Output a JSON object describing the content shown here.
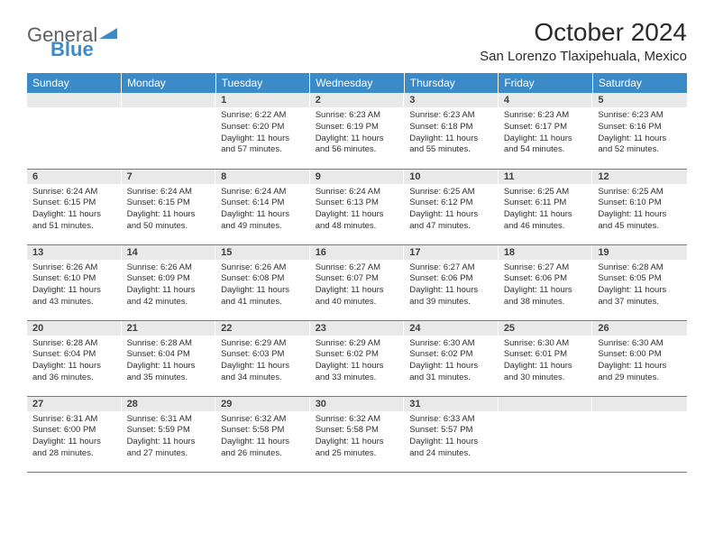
{
  "logo": {
    "text1": "General",
    "text2": "Blue"
  },
  "title": "October 2024",
  "location": "San Lorenzo Tlaxipehuala, Mexico",
  "daynames": [
    "Sunday",
    "Monday",
    "Tuesday",
    "Wednesday",
    "Thursday",
    "Friday",
    "Saturday"
  ],
  "colors": {
    "header_bg": "#3b8bc9",
    "daynum_bg": "#e9e9e9",
    "rule": "#3b8bc9"
  },
  "weeks": [
    [
      null,
      null,
      {
        "n": "1",
        "sr": "6:22 AM",
        "ss": "6:20 PM",
        "d1": "11 hours",
        "d2": "and 57 minutes."
      },
      {
        "n": "2",
        "sr": "6:23 AM",
        "ss": "6:19 PM",
        "d1": "11 hours",
        "d2": "and 56 minutes."
      },
      {
        "n": "3",
        "sr": "6:23 AM",
        "ss": "6:18 PM",
        "d1": "11 hours",
        "d2": "and 55 minutes."
      },
      {
        "n": "4",
        "sr": "6:23 AM",
        "ss": "6:17 PM",
        "d1": "11 hours",
        "d2": "and 54 minutes."
      },
      {
        "n": "5",
        "sr": "6:23 AM",
        "ss": "6:16 PM",
        "d1": "11 hours",
        "d2": "and 52 minutes."
      }
    ],
    [
      {
        "n": "6",
        "sr": "6:24 AM",
        "ss": "6:15 PM",
        "d1": "11 hours",
        "d2": "and 51 minutes."
      },
      {
        "n": "7",
        "sr": "6:24 AM",
        "ss": "6:15 PM",
        "d1": "11 hours",
        "d2": "and 50 minutes."
      },
      {
        "n": "8",
        "sr": "6:24 AM",
        "ss": "6:14 PM",
        "d1": "11 hours",
        "d2": "and 49 minutes."
      },
      {
        "n": "9",
        "sr": "6:24 AM",
        "ss": "6:13 PM",
        "d1": "11 hours",
        "d2": "and 48 minutes."
      },
      {
        "n": "10",
        "sr": "6:25 AM",
        "ss": "6:12 PM",
        "d1": "11 hours",
        "d2": "and 47 minutes."
      },
      {
        "n": "11",
        "sr": "6:25 AM",
        "ss": "6:11 PM",
        "d1": "11 hours",
        "d2": "and 46 minutes."
      },
      {
        "n": "12",
        "sr": "6:25 AM",
        "ss": "6:10 PM",
        "d1": "11 hours",
        "d2": "and 45 minutes."
      }
    ],
    [
      {
        "n": "13",
        "sr": "6:26 AM",
        "ss": "6:10 PM",
        "d1": "11 hours",
        "d2": "and 43 minutes."
      },
      {
        "n": "14",
        "sr": "6:26 AM",
        "ss": "6:09 PM",
        "d1": "11 hours",
        "d2": "and 42 minutes."
      },
      {
        "n": "15",
        "sr": "6:26 AM",
        "ss": "6:08 PM",
        "d1": "11 hours",
        "d2": "and 41 minutes."
      },
      {
        "n": "16",
        "sr": "6:27 AM",
        "ss": "6:07 PM",
        "d1": "11 hours",
        "d2": "and 40 minutes."
      },
      {
        "n": "17",
        "sr": "6:27 AM",
        "ss": "6:06 PM",
        "d1": "11 hours",
        "d2": "and 39 minutes."
      },
      {
        "n": "18",
        "sr": "6:27 AM",
        "ss": "6:06 PM",
        "d1": "11 hours",
        "d2": "and 38 minutes."
      },
      {
        "n": "19",
        "sr": "6:28 AM",
        "ss": "6:05 PM",
        "d1": "11 hours",
        "d2": "and 37 minutes."
      }
    ],
    [
      {
        "n": "20",
        "sr": "6:28 AM",
        "ss": "6:04 PM",
        "d1": "11 hours",
        "d2": "and 36 minutes."
      },
      {
        "n": "21",
        "sr": "6:28 AM",
        "ss": "6:04 PM",
        "d1": "11 hours",
        "d2": "and 35 minutes."
      },
      {
        "n": "22",
        "sr": "6:29 AM",
        "ss": "6:03 PM",
        "d1": "11 hours",
        "d2": "and 34 minutes."
      },
      {
        "n": "23",
        "sr": "6:29 AM",
        "ss": "6:02 PM",
        "d1": "11 hours",
        "d2": "and 33 minutes."
      },
      {
        "n": "24",
        "sr": "6:30 AM",
        "ss": "6:02 PM",
        "d1": "11 hours",
        "d2": "and 31 minutes."
      },
      {
        "n": "25",
        "sr": "6:30 AM",
        "ss": "6:01 PM",
        "d1": "11 hours",
        "d2": "and 30 minutes."
      },
      {
        "n": "26",
        "sr": "6:30 AM",
        "ss": "6:00 PM",
        "d1": "11 hours",
        "d2": "and 29 minutes."
      }
    ],
    [
      {
        "n": "27",
        "sr": "6:31 AM",
        "ss": "6:00 PM",
        "d1": "11 hours",
        "d2": "and 28 minutes."
      },
      {
        "n": "28",
        "sr": "6:31 AM",
        "ss": "5:59 PM",
        "d1": "11 hours",
        "d2": "and 27 minutes."
      },
      {
        "n": "29",
        "sr": "6:32 AM",
        "ss": "5:58 PM",
        "d1": "11 hours",
        "d2": "and 26 minutes."
      },
      {
        "n": "30",
        "sr": "6:32 AM",
        "ss": "5:58 PM",
        "d1": "11 hours",
        "d2": "and 25 minutes."
      },
      {
        "n": "31",
        "sr": "6:33 AM",
        "ss": "5:57 PM",
        "d1": "11 hours",
        "d2": "and 24 minutes."
      },
      null,
      null
    ]
  ],
  "labels": {
    "sunrise": "Sunrise:",
    "sunset": "Sunset:",
    "daylight": "Daylight:"
  }
}
